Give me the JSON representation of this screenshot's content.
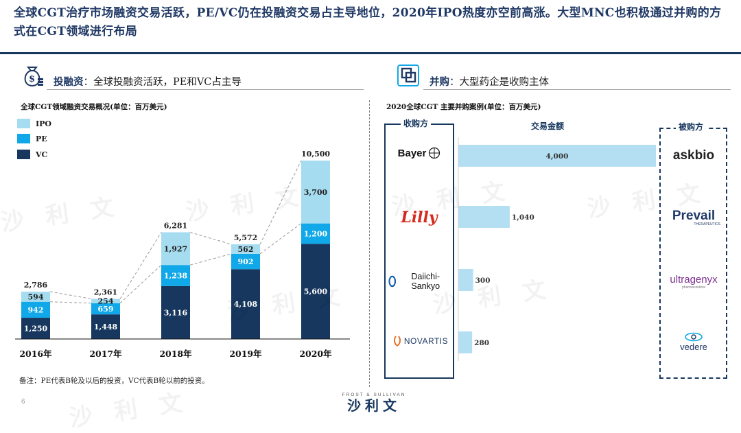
{
  "title": "全球CGT治疗市场融资交易活跃，PE/VC仍在投融资交易占主导地位，2020年IPO热度亦空前高涨。大型MNC也积极通过并购的方式在CGT领域进行布局",
  "left": {
    "heading_strong": "投融资",
    "heading_rest": "：全球投融资活跃，PE和VC占主导",
    "chart_title": "全球CGT领域融资交易概况(单位：百万美元)",
    "legend": [
      "IPO",
      "PE",
      "VC"
    ],
    "note": "备注：PE代表B轮及以后的投资，VC代表B轮以前的投资。"
  },
  "right": {
    "heading_strong": "并购",
    "heading_rest": "：大型药企是收购主体",
    "chart_title": "2020全球CGT 主要并购案例(单位：百万美元)",
    "col_acquirer": "收购方",
    "col_amount": "交易金额",
    "col_target": "被购方",
    "acquirers": [
      "Bayer",
      "Lilly",
      "Daiichi-Sankyo",
      "NOVARTIS"
    ],
    "targets": [
      "askbio",
      "Prevail",
      "ultragenyx",
      "vedere"
    ],
    "target_sub": [
      "",
      "THERAPEUTICS",
      "pharmaceutical",
      ""
    ]
  },
  "page_number": "6",
  "footer": {
    "brand_en": "FROST & SULLIVAN",
    "brand_cn": "沙利文"
  },
  "watermark": "沙 利 文",
  "colors": {
    "ipo": "#a6dcf0",
    "pe": "#10a8e8",
    "vc": "#17375e",
    "deal_bar": "#b4dff2",
    "navy": "#1f3864"
  },
  "chart_data": [
    {
      "type": "bar",
      "stacked": true,
      "title": "全球CGT领域融资交易概况(单位：百万美元)",
      "categories": [
        "2016年",
        "2017年",
        "2018年",
        "2019年",
        "2020年"
      ],
      "series": [
        {
          "name": "VC",
          "values": [
            1250,
            1448,
            3116,
            4108,
            5600
          ]
        },
        {
          "name": "PE",
          "values": [
            942,
            659,
            1238,
            902,
            1200
          ]
        },
        {
          "name": "IPO",
          "values": [
            594,
            254,
            1927,
            562,
            3700
          ]
        }
      ],
      "totals": [
        2786,
        2361,
        6281,
        5572,
        10500
      ],
      "legend": "top-left",
      "grid": false
    },
    {
      "type": "bar",
      "orientation": "horizontal",
      "title": "2020全球CGT 主要并购案例(单位：百万美元)",
      "categories": [
        "Bayer",
        "Lilly",
        "Daiichi-Sankyo",
        "NOVARTIS"
      ],
      "values": [
        4000,
        1040,
        300,
        280
      ],
      "grid": false
    }
  ]
}
